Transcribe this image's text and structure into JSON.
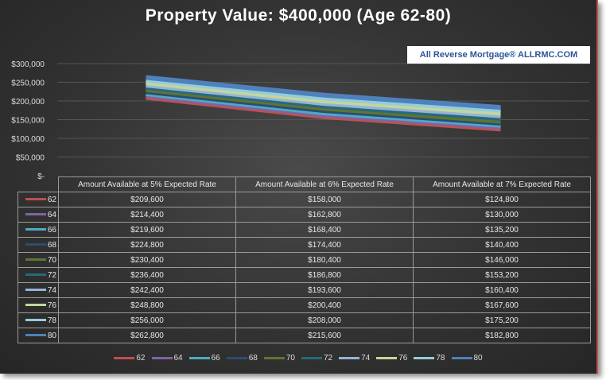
{
  "chart_data": {
    "type": "line",
    "title": "Property Value: $400,000  (Age 62-80)",
    "categories": [
      "Amount Available at 5% Expected Rate",
      "Amount Available at 6% Expected Rate",
      "Amount Available at 7% Expected Rate"
    ],
    "ylim": [
      0,
      300000
    ],
    "yticks": [
      "$-",
      "$50,000",
      "$100,000",
      "$150,000",
      "$200,000",
      "$250,000",
      "$300,000"
    ],
    "grid": true,
    "legend": "bottom",
    "data_table": true,
    "series": [
      {
        "name": "62",
        "color": "#c0504d",
        "values": [
          209600,
          158000,
          124800
        ],
        "labels": [
          "$209,600",
          "$158,000",
          "$124,800"
        ]
      },
      {
        "name": "64",
        "color": "#8064a2",
        "values": [
          214400,
          162800,
          130000
        ],
        "labels": [
          "$214,400",
          "$162,800",
          "$130,000"
        ]
      },
      {
        "name": "66",
        "color": "#4bacc6",
        "values": [
          219600,
          168400,
          135200
        ],
        "labels": [
          "$219,600",
          "$168,400",
          "$135,200"
        ]
      },
      {
        "name": "68",
        "color": "#2c4d75",
        "values": [
          224800,
          174400,
          140400
        ],
        "labels": [
          "$224,800",
          "$174,400",
          "$140,400"
        ]
      },
      {
        "name": "70",
        "color": "#5f7530",
        "values": [
          230400,
          180400,
          146000
        ],
        "labels": [
          "$230,400",
          "$180,400",
          "$146,000"
        ]
      },
      {
        "name": "72",
        "color": "#276a7c",
        "values": [
          236400,
          186800,
          153200
        ],
        "labels": [
          "$236,400",
          "$186,800",
          "$153,200"
        ]
      },
      {
        "name": "74",
        "color": "#95b3d7",
        "values": [
          242400,
          193600,
          160400
        ],
        "labels": [
          "$242,400",
          "$193,600",
          "$160,400"
        ]
      },
      {
        "name": "76",
        "color": "#c3d69b",
        "values": [
          248800,
          200400,
          167600
        ],
        "labels": [
          "$248,800",
          "$200,400",
          "$167,600"
        ]
      },
      {
        "name": "78",
        "color": "#93cddd",
        "values": [
          256000,
          208000,
          175200
        ],
        "labels": [
          "$256,000",
          "$208,000",
          "$175,200"
        ]
      },
      {
        "name": "80",
        "color": "#4f81bd",
        "values": [
          262800,
          215600,
          182800
        ],
        "labels": [
          "$262,800",
          "$215,600",
          "$182,800"
        ]
      }
    ]
  },
  "watermark": "All Reverse Mortgage®  ALLRMC.COM"
}
